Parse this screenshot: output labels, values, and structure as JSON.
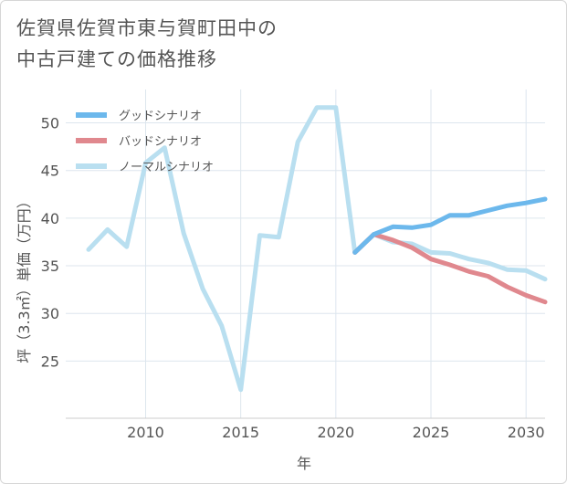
{
  "title": {
    "line1": "佐賀県佐賀市東与賀町田中の",
    "line2": "中古戸建ての価格推移"
  },
  "chart_data": {
    "type": "line",
    "title": "佐賀県佐賀市東与賀町田中の中古戸建ての価格推移",
    "xlabel": "年",
    "ylabel": "坪（3.3㎡）単価（万円）",
    "xlim": [
      2005.8,
      2031
    ],
    "ylim": [
      19,
      53.5
    ],
    "x_ticks": [
      2010,
      2015,
      2020,
      2025,
      2030
    ],
    "y_ticks": [
      25,
      30,
      35,
      40,
      45,
      50
    ],
    "grid": true,
    "legend_position": "top-left",
    "series": [
      {
        "name": "グッドシナリオ",
        "color": "#6cb8ec",
        "x": [
          2021,
          2022,
          2023,
          2024,
          2025,
          2026,
          2027,
          2028,
          2029,
          2030,
          2031
        ],
        "y": [
          36.4,
          38.3,
          39.1,
          39.0,
          39.3,
          40.3,
          40.3,
          40.8,
          41.3,
          41.6,
          42.0
        ]
      },
      {
        "name": "バッドシナリオ",
        "color": "#e0888e",
        "x": [
          2021,
          2022,
          2023,
          2024,
          2025,
          2026,
          2027,
          2028,
          2029,
          2030,
          2031
        ],
        "y": [
          36.4,
          38.3,
          37.7,
          36.9,
          35.7,
          35.1,
          34.4,
          33.9,
          32.8,
          31.9,
          31.2
        ]
      },
      {
        "name": "ノーマルシナリオ",
        "color": "#b9dff0",
        "x": [
          2007,
          2008,
          2009,
          2010,
          2011,
          2012,
          2013,
          2014,
          2015,
          2016,
          2017,
          2018,
          2019,
          2020,
          2021,
          2022,
          2023,
          2024,
          2025,
          2026,
          2027,
          2028,
          2029,
          2030,
          2031
        ],
        "y": [
          36.7,
          38.8,
          37.0,
          45.8,
          47.4,
          38.4,
          32.6,
          28.7,
          22.0,
          38.2,
          38.0,
          48.0,
          51.6,
          51.6,
          36.4,
          38.3,
          37.5,
          37.3,
          36.4,
          36.3,
          35.7,
          35.3,
          34.6,
          34.5,
          33.6
        ]
      }
    ]
  }
}
